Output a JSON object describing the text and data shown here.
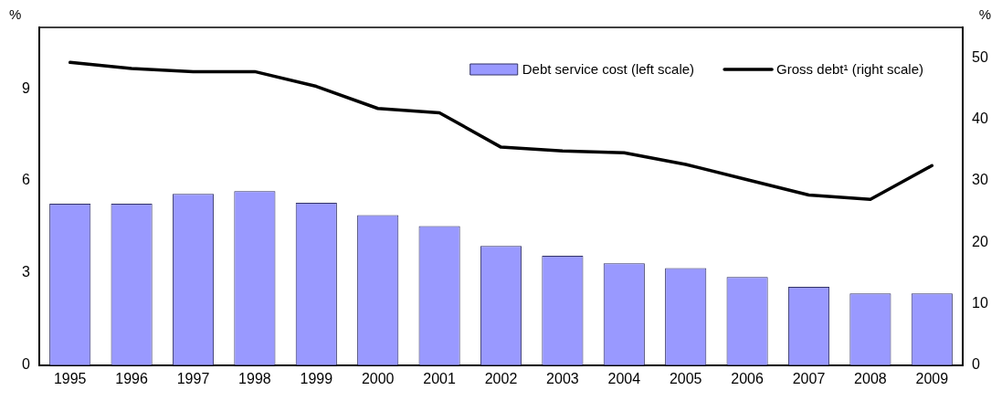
{
  "chart_data": {
    "type": "bar",
    "ylabel": "%",
    "y2label": "%",
    "categories": [
      "1995",
      "1996",
      "1997",
      "1998",
      "1999",
      "2000",
      "2001",
      "2002",
      "2003",
      "2004",
      "2005",
      "2006",
      "2007",
      "2008",
      "2009"
    ],
    "series": [
      {
        "name": "Debt service cost (left scale)",
        "color": "#9999ff",
        "values": [
          5.26,
          5.26,
          5.58,
          5.67,
          5.29,
          4.89,
          4.53,
          3.88,
          3.56,
          3.32,
          3.16,
          2.87,
          2.55,
          2.34,
          2.34
        ]
      },
      {
        "name": "Gross debt¹ (right scale)",
        "type": "line",
        "axis": "y2",
        "color": "#000000",
        "values": [
          49.3,
          48.3,
          47.8,
          47.8,
          45.4,
          41.8,
          41.1,
          35.5,
          34.9,
          34.6,
          32.7,
          30.2,
          27.7,
          27.0,
          32.5
        ]
      }
    ],
    "ylim": [
      0,
      11
    ],
    "yticks": [
      0,
      3,
      6,
      9
    ],
    "y2lim": [
      0,
      55
    ],
    "y2ticks": [
      0,
      10,
      20,
      30,
      40,
      50
    ],
    "grid": false,
    "legend": "top right",
    "marker": "none",
    "line_style": "solid"
  }
}
